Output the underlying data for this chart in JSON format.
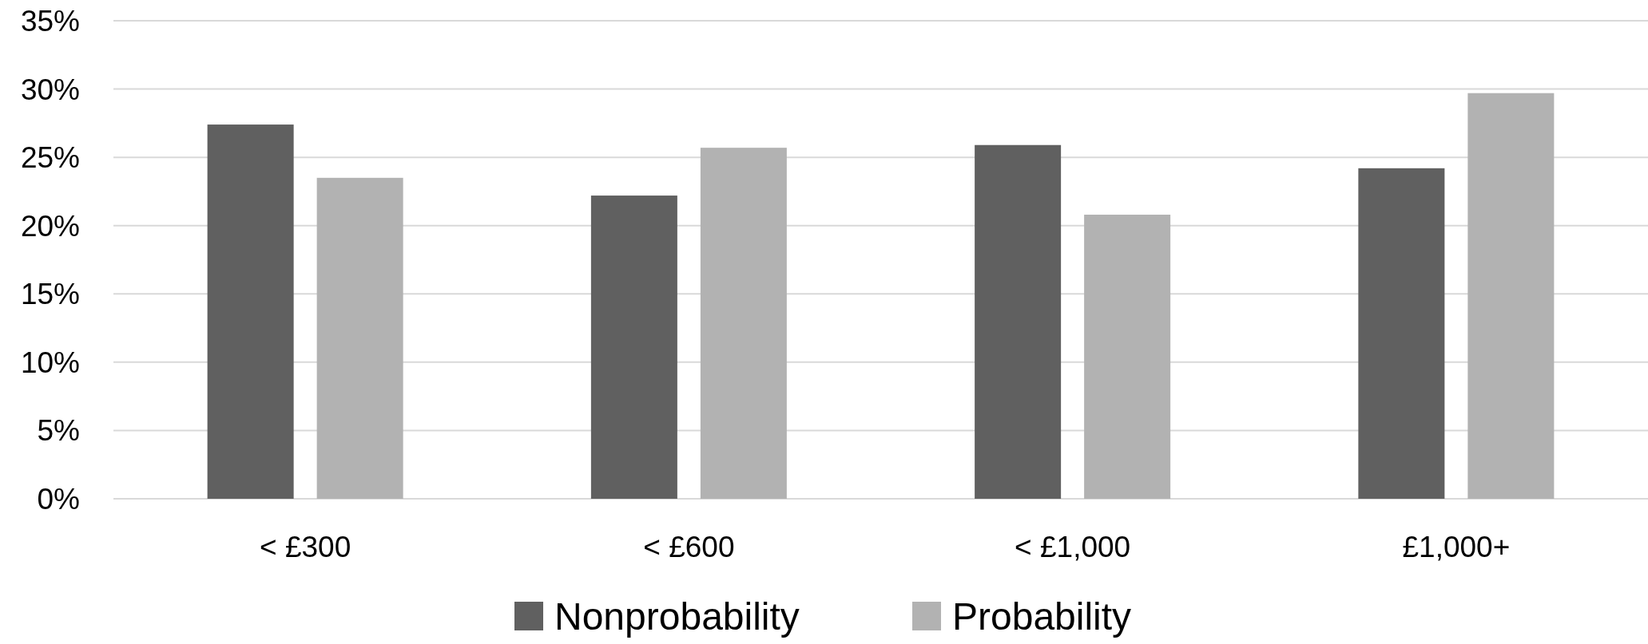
{
  "chart_data": {
    "type": "bar",
    "categories": [
      "< £300",
      "< £600",
      "< £1,000",
      "£1,000+"
    ],
    "series": [
      {
        "name": "Nonprobability",
        "color": "#606060",
        "values": [
          27.4,
          22.2,
          25.9,
          24.2
        ]
      },
      {
        "name": "Probability",
        "color": "#b2b2b2",
        "values": [
          23.5,
          25.7,
          20.8,
          29.7
        ]
      }
    ],
    "ylim": [
      0,
      35
    ],
    "yticks": [
      {
        "value": 0,
        "label": "0%"
      },
      {
        "value": 5,
        "label": "5%"
      },
      {
        "value": 10,
        "label": "10%"
      },
      {
        "value": 15,
        "label": "15%"
      },
      {
        "value": 20,
        "label": "20%"
      },
      {
        "value": 25,
        "label": "25%"
      },
      {
        "value": 30,
        "label": "30%"
      },
      {
        "value": 35,
        "label": "35%"
      }
    ],
    "grid": "y",
    "legend": "bottom"
  }
}
